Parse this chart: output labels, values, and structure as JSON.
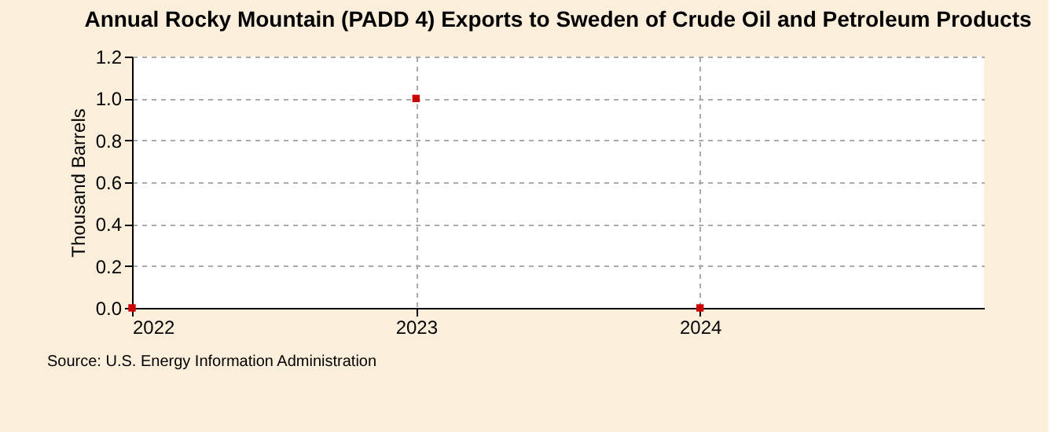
{
  "chart_data": {
    "type": "scatter",
    "title": "Annual Rocky Mountain (PADD 4) Exports to Sweden of Crude Oil and Petroleum Products",
    "ylabel": "Thousand Barrels",
    "x": [
      2022,
      2023,
      2024
    ],
    "series": [
      {
        "color": "#cc0000",
        "values": [
          0,
          1.0,
          0
        ]
      }
    ],
    "xlim": [
      2022,
      2025
    ],
    "xticks": [
      2022,
      2023,
      2024
    ],
    "ylim": [
      0,
      1.2
    ],
    "yticks": [
      {
        "value": 0,
        "label": "0.0"
      },
      {
        "value": 0.2,
        "label": "0.2"
      },
      {
        "value": 0.4,
        "label": "0.4"
      },
      {
        "value": 0.6,
        "label": "0.6"
      },
      {
        "value": 0.8,
        "label": "0.8"
      },
      {
        "value": 1.0,
        "label": "1.0"
      },
      {
        "value": 1.2,
        "label": "1.2"
      }
    ],
    "grid": true,
    "marker": "square",
    "annotations": [
      "Source: U.S. Energy Information Administration"
    ]
  }
}
